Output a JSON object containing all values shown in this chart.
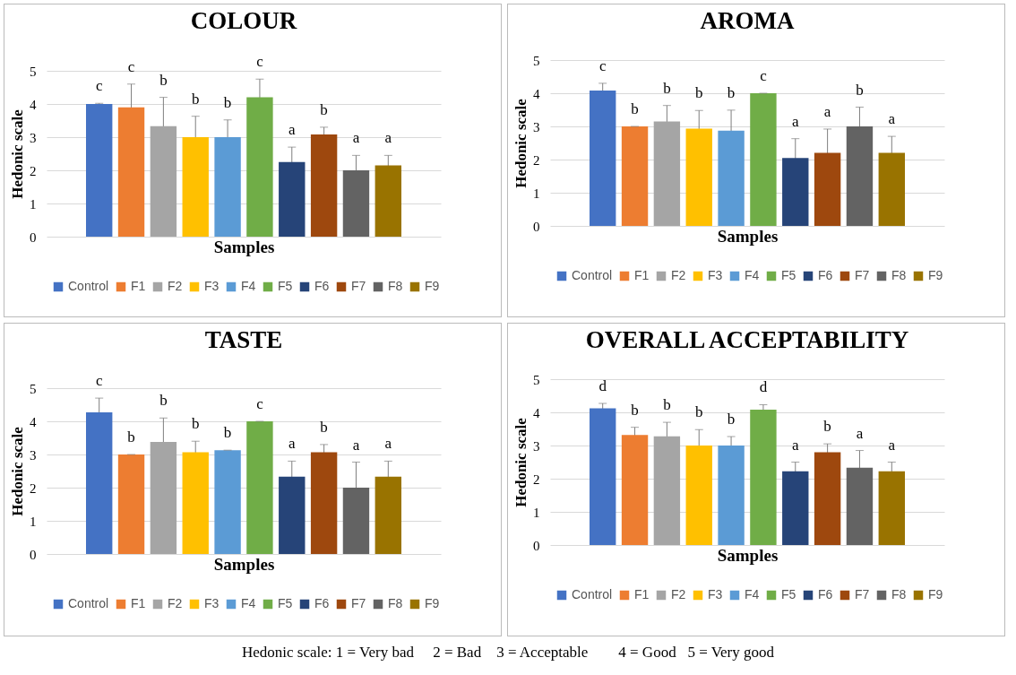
{
  "chart_data": [
    {
      "type": "bar",
      "title": "COLOUR",
      "xlabel": "Samples",
      "ylabel": "Hedonic scale",
      "categories": [
        null
      ],
      "ylim": [
        0,
        5
      ],
      "yticks": [
        0,
        1,
        2,
        3,
        4,
        5
      ],
      "grid": "y",
      "legend": "bottom",
      "series": [
        {
          "name": "Control",
          "color": "#4472c4",
          "values": [
            4.0
          ],
          "errors": [
            0.02
          ],
          "value_labels": [
            "c"
          ]
        },
        {
          "name": "F1",
          "color": "#ed7d31",
          "values": [
            3.9
          ],
          "errors": [
            0.7
          ],
          "value_labels": [
            "c"
          ]
        },
        {
          "name": "F2",
          "color": "#a5a5a5",
          "values": [
            3.33
          ],
          "errors": [
            0.87
          ],
          "value_labels": [
            "b"
          ]
        },
        {
          "name": "F3",
          "color": "#ffc000",
          "values": [
            3.0
          ],
          "errors": [
            0.63
          ],
          "value_labels": [
            "b"
          ]
        },
        {
          "name": "F4",
          "color": "#5b9bd5",
          "values": [
            3.0
          ],
          "errors": [
            0.52
          ],
          "value_labels": [
            "b"
          ]
        },
        {
          "name": "F5",
          "color": "#70ad47",
          "values": [
            4.2
          ],
          "errors": [
            0.55
          ],
          "value_labels": [
            "c"
          ]
        },
        {
          "name": "F6",
          "color": "#264478",
          "values": [
            2.25
          ],
          "errors": [
            0.45
          ],
          "value_labels": [
            "a"
          ]
        },
        {
          "name": "F7",
          "color": "#9e480e",
          "values": [
            3.08
          ],
          "errors": [
            0.22
          ],
          "value_labels": [
            "b"
          ]
        },
        {
          "name": "F8",
          "color": "#636363",
          "values": [
            2.0
          ],
          "errors": [
            0.45
          ],
          "value_labels": [
            "a"
          ]
        },
        {
          "name": "F9",
          "color": "#997300",
          "values": [
            2.15
          ],
          "errors": [
            0.3
          ],
          "value_labels": [
            "a"
          ]
        }
      ]
    },
    {
      "type": "bar",
      "title": "AROMA",
      "xlabel": "Samples",
      "ylabel": "Hedonic scale",
      "categories": [
        null
      ],
      "ylim": [
        0,
        5
      ],
      "yticks": [
        0,
        1,
        2,
        3,
        4,
        5
      ],
      "grid": "y",
      "legend": "bottom",
      "series": [
        {
          "name": "Control",
          "color": "#4472c4",
          "values": [
            4.08
          ],
          "errors": [
            0.22
          ],
          "value_labels": [
            "c"
          ]
        },
        {
          "name": "F1",
          "color": "#ed7d31",
          "values": [
            3.0
          ],
          "errors": [
            null
          ],
          "value_labels": [
            "b"
          ]
        },
        {
          "name": "F2",
          "color": "#a5a5a5",
          "values": [
            3.15
          ],
          "errors": [
            0.48
          ],
          "value_labels": [
            "b"
          ]
        },
        {
          "name": "F3",
          "color": "#ffc000",
          "values": [
            2.93
          ],
          "errors": [
            0.55
          ],
          "value_labels": [
            "b"
          ]
        },
        {
          "name": "F4",
          "color": "#5b9bd5",
          "values": [
            2.87
          ],
          "errors": [
            0.62
          ],
          "value_labels": [
            "b"
          ]
        },
        {
          "name": "F5",
          "color": "#70ad47",
          "values": [
            4.0
          ],
          "errors": [
            null
          ],
          "value_labels": [
            "c"
          ]
        },
        {
          "name": "F6",
          "color": "#264478",
          "values": [
            2.05
          ],
          "errors": [
            0.58
          ],
          "value_labels": [
            "a"
          ]
        },
        {
          "name": "F7",
          "color": "#9e480e",
          "values": [
            2.2
          ],
          "errors": [
            0.72
          ],
          "value_labels": [
            "a"
          ]
        },
        {
          "name": "F8",
          "color": "#636363",
          "values": [
            3.0
          ],
          "errors": [
            0.58
          ],
          "value_labels": [
            "b"
          ]
        },
        {
          "name": "F9",
          "color": "#997300",
          "values": [
            2.2
          ],
          "errors": [
            0.5
          ],
          "value_labels": [
            "a"
          ]
        }
      ]
    },
    {
      "type": "bar",
      "title": "TASTE",
      "xlabel": "Samples",
      "ylabel": "Hedonic scale",
      "categories": [
        null
      ],
      "ylim": [
        0,
        5
      ],
      "yticks": [
        0,
        1,
        2,
        3,
        4,
        5
      ],
      "grid": "y",
      "legend": "bottom",
      "series": [
        {
          "name": "Control",
          "color": "#4472c4",
          "values": [
            4.27
          ],
          "errors": [
            0.43
          ],
          "value_labels": [
            "c"
          ]
        },
        {
          "name": "F1",
          "color": "#ed7d31",
          "values": [
            3.0
          ],
          "errors": [
            null
          ],
          "value_labels": [
            "b"
          ]
        },
        {
          "name": "F2",
          "color": "#a5a5a5",
          "values": [
            3.38
          ],
          "errors": [
            0.72
          ],
          "value_labels": [
            "b"
          ]
        },
        {
          "name": "F3",
          "color": "#ffc000",
          "values": [
            3.07
          ],
          "errors": [
            0.33
          ],
          "value_labels": [
            "b"
          ]
        },
        {
          "name": "F4",
          "color": "#5b9bd5",
          "values": [
            3.13
          ],
          "errors": [
            null
          ],
          "value_labels": [
            "b"
          ]
        },
        {
          "name": "F5",
          "color": "#70ad47",
          "values": [
            4.0
          ],
          "errors": [
            null
          ],
          "value_labels": [
            "c"
          ]
        },
        {
          "name": "F6",
          "color": "#264478",
          "values": [
            2.33
          ],
          "errors": [
            0.47
          ],
          "value_labels": [
            "a"
          ]
        },
        {
          "name": "F7",
          "color": "#9e480e",
          "values": [
            3.07
          ],
          "errors": [
            0.23
          ],
          "value_labels": [
            "b"
          ]
        },
        {
          "name": "F8",
          "color": "#636363",
          "values": [
            2.0
          ],
          "errors": [
            0.77
          ],
          "value_labels": [
            "a"
          ]
        },
        {
          "name": "F9",
          "color": "#997300",
          "values": [
            2.33
          ],
          "errors": [
            0.47
          ],
          "value_labels": [
            "a"
          ]
        }
      ]
    },
    {
      "type": "bar",
      "title": "OVERALL ACCEPTABILITY",
      "xlabel": "Samples",
      "ylabel": "Hedonic scale",
      "categories": [
        null
      ],
      "ylim": [
        0,
        5
      ],
      "yticks": [
        0,
        1,
        2,
        3,
        4,
        5
      ],
      "grid": "y",
      "legend": "bottom",
      "annotations": [
        "Hedonic scale: 1 = Very bad     2 = Bad    3 = Acceptable        4 = Good   5 = Very good"
      ],
      "series": [
        {
          "name": "Control",
          "color": "#4472c4",
          "values": [
            4.12
          ],
          "errors": [
            0.15
          ],
          "value_labels": [
            "d"
          ]
        },
        {
          "name": "F1",
          "color": "#ed7d31",
          "values": [
            3.32
          ],
          "errors": [
            0.23
          ],
          "value_labels": [
            "b"
          ]
        },
        {
          "name": "F2",
          "color": "#a5a5a5",
          "values": [
            3.28
          ],
          "errors": [
            0.42
          ],
          "value_labels": [
            "b"
          ]
        },
        {
          "name": "F3",
          "color": "#ffc000",
          "values": [
            3.0
          ],
          "errors": [
            0.48
          ],
          "value_labels": [
            "b"
          ]
        },
        {
          "name": "F4",
          "color": "#5b9bd5",
          "values": [
            3.0
          ],
          "errors": [
            0.27
          ],
          "value_labels": [
            "b"
          ]
        },
        {
          "name": "F5",
          "color": "#70ad47",
          "values": [
            4.08
          ],
          "errors": [
            0.15
          ],
          "value_labels": [
            "d"
          ]
        },
        {
          "name": "F6",
          "color": "#264478",
          "values": [
            2.22
          ],
          "errors": [
            0.28
          ],
          "value_labels": [
            "a"
          ]
        },
        {
          "name": "F7",
          "color": "#9e480e",
          "values": [
            2.8
          ],
          "errors": [
            0.25
          ],
          "value_labels": [
            "b"
          ]
        },
        {
          "name": "F8",
          "color": "#636363",
          "values": [
            2.33
          ],
          "errors": [
            0.52
          ],
          "value_labels": [
            "a"
          ]
        },
        {
          "name": "F9",
          "color": "#997300",
          "values": [
            2.22
          ],
          "errors": [
            0.28
          ],
          "value_labels": [
            "a"
          ]
        }
      ]
    }
  ]
}
